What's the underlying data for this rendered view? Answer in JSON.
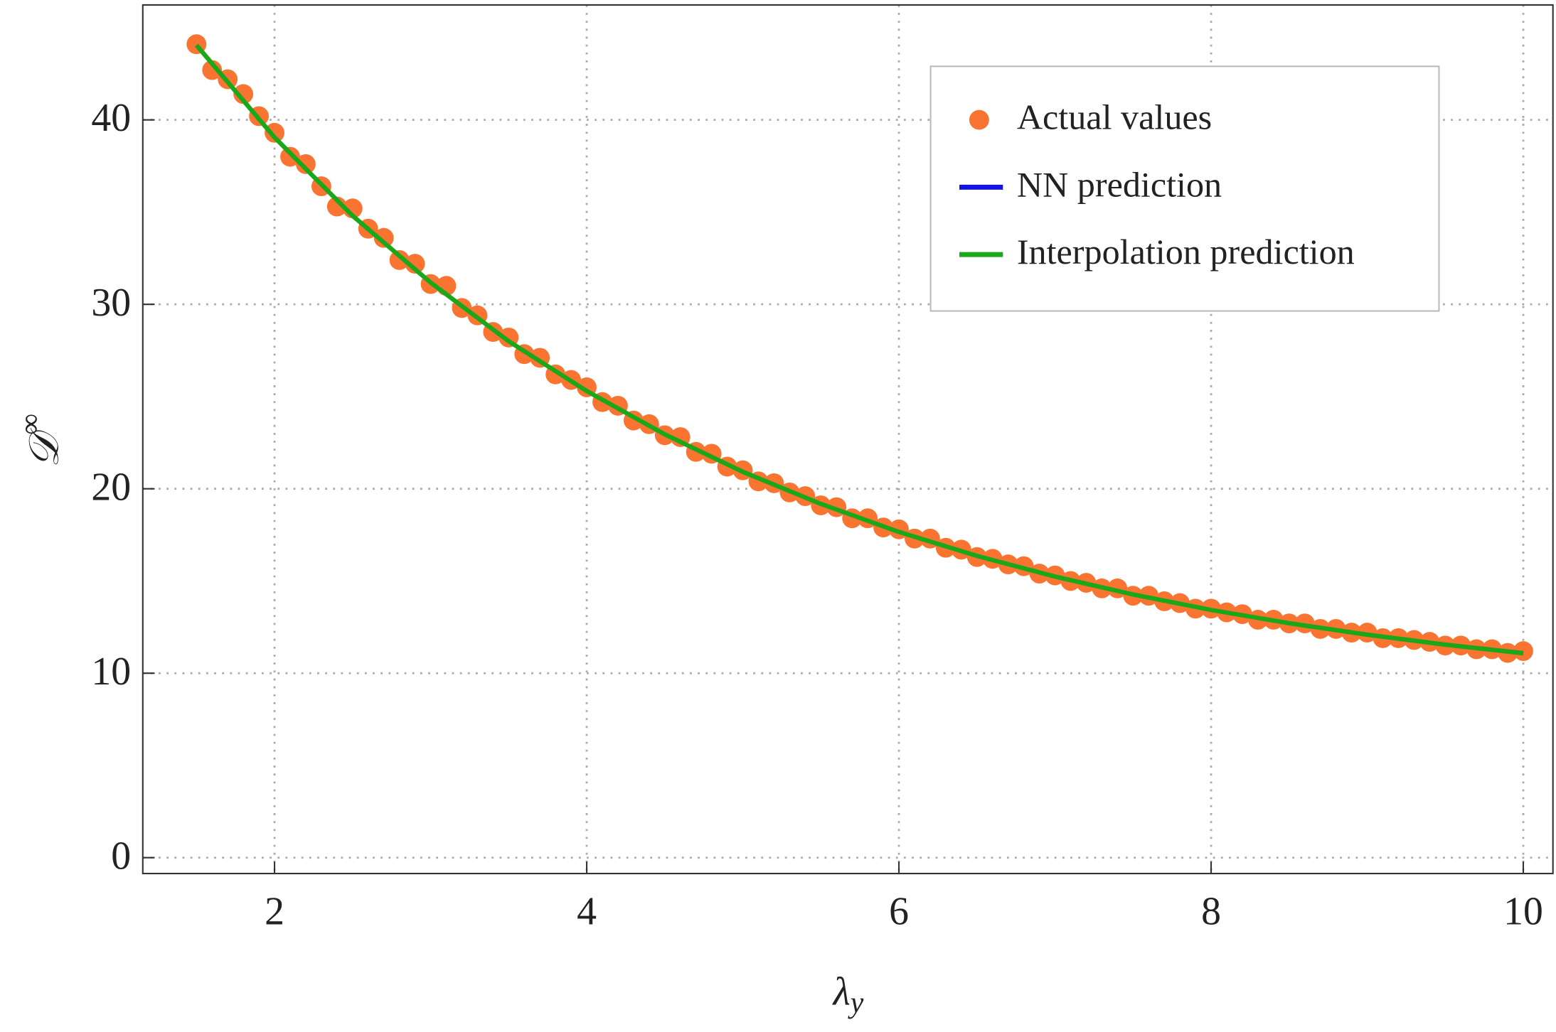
{
  "chart_data": {
    "type": "scatter",
    "x_label": "λ",
    "x_label_sub": "y",
    "y_label": "𝒟",
    "y_label_sup": "∞",
    "xlim": [
      1.156,
      10.19
    ],
    "ylim": [
      -0.86,
      46.23
    ],
    "xticks": [
      2,
      4,
      6,
      8,
      10
    ],
    "yticks": [
      0,
      10,
      20,
      30,
      40
    ],
    "grid": true,
    "legend": "upper right",
    "series": [
      {
        "name": "Actual values",
        "color": "#fa7431",
        "type": "scatter",
        "x": [
          1.5,
          1.6,
          1.7,
          1.8,
          1.9,
          2.0,
          2.1,
          2.2,
          2.3,
          2.4,
          2.5,
          2.6,
          2.7,
          2.8,
          2.9,
          3.0,
          3.1,
          3.2,
          3.3,
          3.4,
          3.5,
          3.6,
          3.7,
          3.8,
          3.9,
          4.0,
          4.1,
          4.2,
          4.3,
          4.4,
          4.5,
          4.6,
          4.7,
          4.8,
          4.9,
          5.0,
          5.1,
          5.2,
          5.3,
          5.4,
          5.5,
          5.6,
          5.7,
          5.8,
          5.9,
          6.0,
          6.1,
          6.2,
          6.3,
          6.4,
          6.5,
          6.6,
          6.7,
          6.8,
          6.9,
          7.0,
          7.1,
          7.2,
          7.3,
          7.4,
          7.5,
          7.6,
          7.7,
          7.8,
          7.9,
          8.0,
          8.1,
          8.2,
          8.3,
          8.4,
          8.5,
          8.6,
          8.7,
          8.8,
          8.9,
          9.0,
          9.1,
          9.2,
          9.3,
          9.4,
          9.5,
          9.6,
          9.7,
          9.8,
          9.9,
          10.0
        ],
        "values": [
          44.1,
          42.7,
          42.2,
          41.4,
          40.2,
          39.3,
          38.0,
          37.6,
          36.4,
          35.3,
          35.2,
          34.1,
          33.6,
          32.4,
          32.2,
          31.1,
          31.0,
          29.8,
          29.4,
          28.5,
          28.2,
          27.3,
          27.1,
          26.2,
          25.9,
          25.5,
          24.7,
          24.5,
          23.7,
          23.5,
          22.9,
          22.8,
          22.0,
          21.9,
          21.2,
          21.0,
          20.4,
          20.3,
          19.8,
          19.6,
          19.1,
          19.0,
          18.4,
          18.4,
          17.9,
          17.8,
          17.3,
          17.3,
          16.8,
          16.7,
          16.3,
          16.2,
          15.9,
          15.8,
          15.4,
          15.3,
          15.0,
          14.9,
          14.6,
          14.6,
          14.2,
          14.2,
          13.9,
          13.8,
          13.5,
          13.5,
          13.3,
          13.2,
          12.9,
          12.9,
          12.7,
          12.7,
          12.4,
          12.4,
          12.2,
          12.2,
          11.9,
          11.9,
          11.8,
          11.7,
          11.5,
          11.5,
          11.3,
          11.3,
          11.1,
          11.2
        ]
      },
      {
        "name": "NN prediction",
        "color": "#1212e6",
        "type": "line",
        "x": [
          1.5,
          2.0,
          2.5,
          3.0,
          3.5,
          4.0,
          4.5,
          5.0,
          5.5,
          6.0,
          6.5,
          7.0,
          7.5,
          8.0,
          8.5,
          9.0,
          9.5,
          10.0
        ],
        "values": [
          44.0,
          39.09,
          34.85,
          31.2,
          28.04,
          25.32,
          22.97,
          20.95,
          19.2,
          17.69,
          16.39,
          15.27,
          14.3,
          13.46,
          12.74,
          12.12,
          11.58,
          11.12
        ]
      },
      {
        "name": "Interpolation prediction",
        "color": "#1aa81a",
        "type": "line",
        "x": [
          1.5,
          2.0,
          2.5,
          3.0,
          3.5,
          4.0,
          4.5,
          5.0,
          5.5,
          6.0,
          6.5,
          7.0,
          7.5,
          8.0,
          8.5,
          9.0,
          9.5,
          10.0
        ],
        "values": [
          44.05,
          39.05,
          34.8,
          31.18,
          28.0,
          25.3,
          22.95,
          20.92,
          19.18,
          17.66,
          16.36,
          15.24,
          14.27,
          13.43,
          12.71,
          12.09,
          11.55,
          11.08
        ]
      }
    ]
  }
}
